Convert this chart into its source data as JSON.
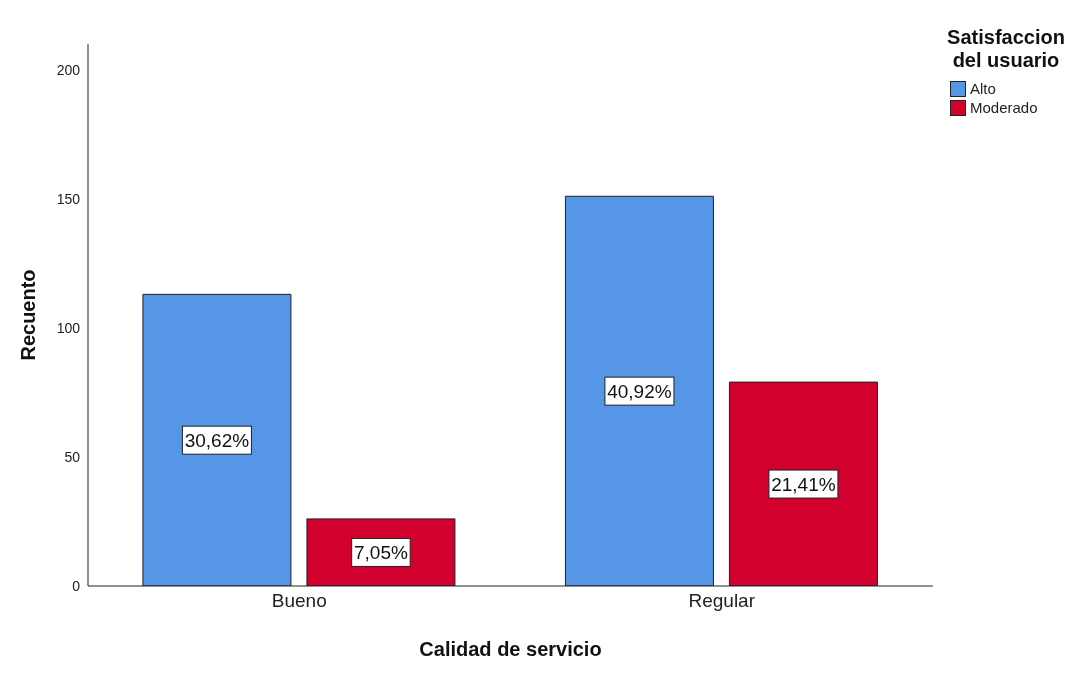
{
  "chart_data": {
    "type": "bar",
    "xlabel": "Calidad de servicio",
    "ylabel": "Recuento",
    "legend_title": "Satisfaccion del usuario",
    "categories": [
      "Bueno",
      "Regular"
    ],
    "series": [
      {
        "name": "Alto",
        "color": "#5596e6",
        "values": [
          113,
          151
        ]
      },
      {
        "name": "Moderado",
        "color": "#d2002d",
        "values": [
          26,
          79
        ]
      }
    ],
    "annotations": [
      "30,62%",
      "40,92%",
      "7,05%",
      "21,41%"
    ],
    "ylim": [
      0,
      210
    ],
    "yticks": [
      0,
      50,
      100,
      150,
      200
    ],
    "grid": false,
    "legend": "top right"
  }
}
